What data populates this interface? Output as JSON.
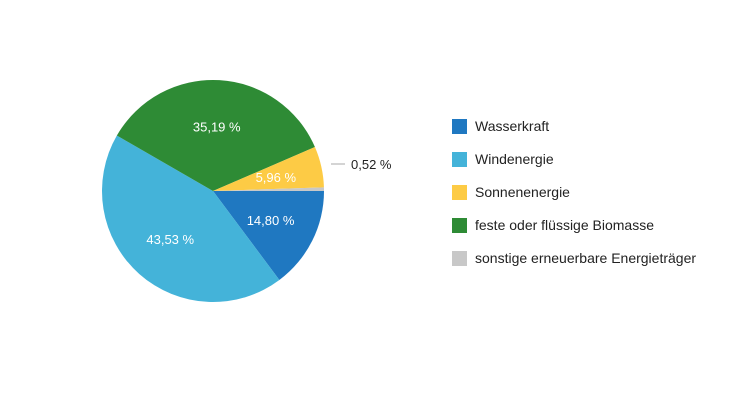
{
  "chart_data": {
    "type": "pie",
    "title": "",
    "slices": [
      {
        "name": "Wasserkraft",
        "value": 14.8,
        "label": "14,80 %",
        "color": "#1f78c1"
      },
      {
        "name": "Windenergie",
        "value": 43.53,
        "label": "43,53 %",
        "color": "#44b3d9"
      },
      {
        "name": "feste oder flüssige Biomasse",
        "value": 35.19,
        "label": "35,19 %",
        "color": "#2e8b35"
      },
      {
        "name": "Sonnenenergie",
        "value": 5.96,
        "label": "5,96 %",
        "color": "#fdcb45"
      },
      {
        "name": "sonstige erneuerbare Energieträger",
        "value": 0.52,
        "label": "0,52 %",
        "color": "#c8c8c8"
      }
    ],
    "legend": {
      "position": "right",
      "entries": [
        {
          "label": "Wasserkraft",
          "color": "#1f78c1"
        },
        {
          "label": "Windenergie",
          "color": "#44b3d9"
        },
        {
          "label": "Sonnenenergie",
          "color": "#fdcb45"
        },
        {
          "label": "feste oder flüssige Biomasse",
          "color": "#2e8b35"
        },
        {
          "label": "sonstige erneuerbare Energieträger",
          "color": "#c8c8c8"
        }
      ]
    }
  }
}
